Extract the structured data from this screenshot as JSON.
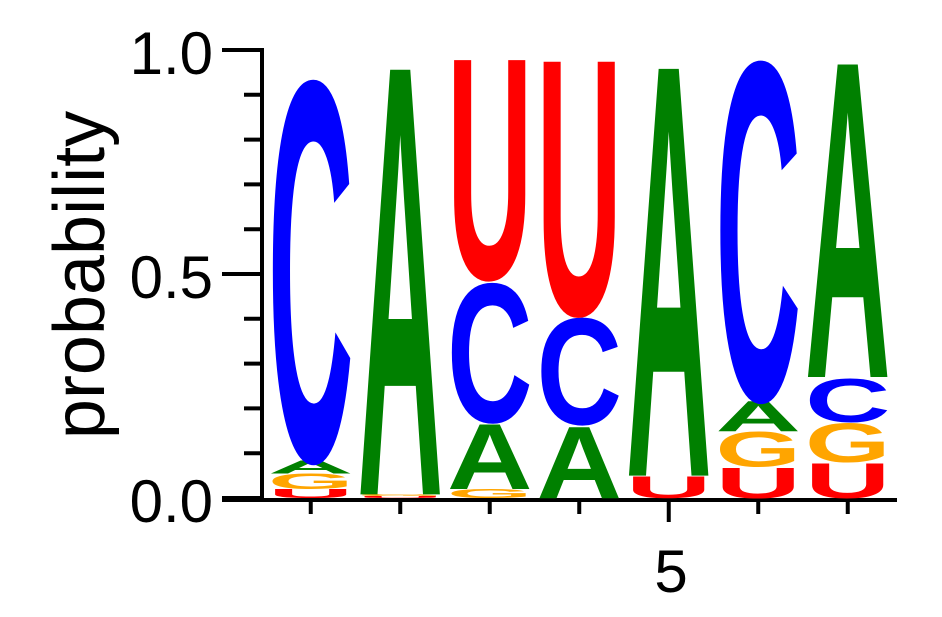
{
  "chart_data": {
    "type": "sequence-logo",
    "ylabel": "probability",
    "ylim": [
      0,
      1
    ],
    "yticks": [
      "0.0",
      "0.5",
      "1.0"
    ],
    "xtick_label": "5",
    "xtick_position": 5,
    "colors": {
      "A": "#008000",
      "C": "#0000ff",
      "G": "#ffa500",
      "U": "#ff0000"
    },
    "positions": [
      {
        "pos": 1,
        "stack": [
          {
            "letter": "U",
            "p": 0.02
          },
          {
            "letter": "G",
            "p": 0.035
          },
          {
            "letter": "A",
            "p": 0.03
          },
          {
            "letter": "C",
            "p": 0.875
          }
        ]
      },
      {
        "pos": 2,
        "stack": [
          {
            "letter": "U",
            "p": 0.004
          },
          {
            "letter": "G",
            "p": 0.004
          },
          {
            "letter": "A",
            "p": 0.992
          }
        ]
      },
      {
        "pos": 3,
        "stack": [
          {
            "letter": "G",
            "p": 0.02
          },
          {
            "letter": "A",
            "p": 0.15
          },
          {
            "letter": "C",
            "p": 0.32
          },
          {
            "letter": "U",
            "p": 0.51
          }
        ]
      },
      {
        "pos": 4,
        "stack": [
          {
            "letter": "A",
            "p": 0.165
          },
          {
            "letter": "C",
            "p": 0.245
          },
          {
            "letter": "U",
            "p": 0.59
          }
        ]
      },
      {
        "pos": 5,
        "stack": [
          {
            "letter": "U",
            "p": 0.05
          },
          {
            "letter": "A",
            "p": 0.95
          }
        ]
      },
      {
        "pos": 6,
        "stack": [
          {
            "letter": "U",
            "p": 0.07
          },
          {
            "letter": "G",
            "p": 0.08
          },
          {
            "letter": "A",
            "p": 0.07
          },
          {
            "letter": "C",
            "p": 0.78
          }
        ]
      },
      {
        "pos": 7,
        "stack": [
          {
            "letter": "U",
            "p": 0.08
          },
          {
            "letter": "G",
            "p": 0.09
          },
          {
            "letter": "C",
            "p": 0.1
          },
          {
            "letter": "A",
            "p": 0.73
          }
        ]
      }
    ]
  }
}
